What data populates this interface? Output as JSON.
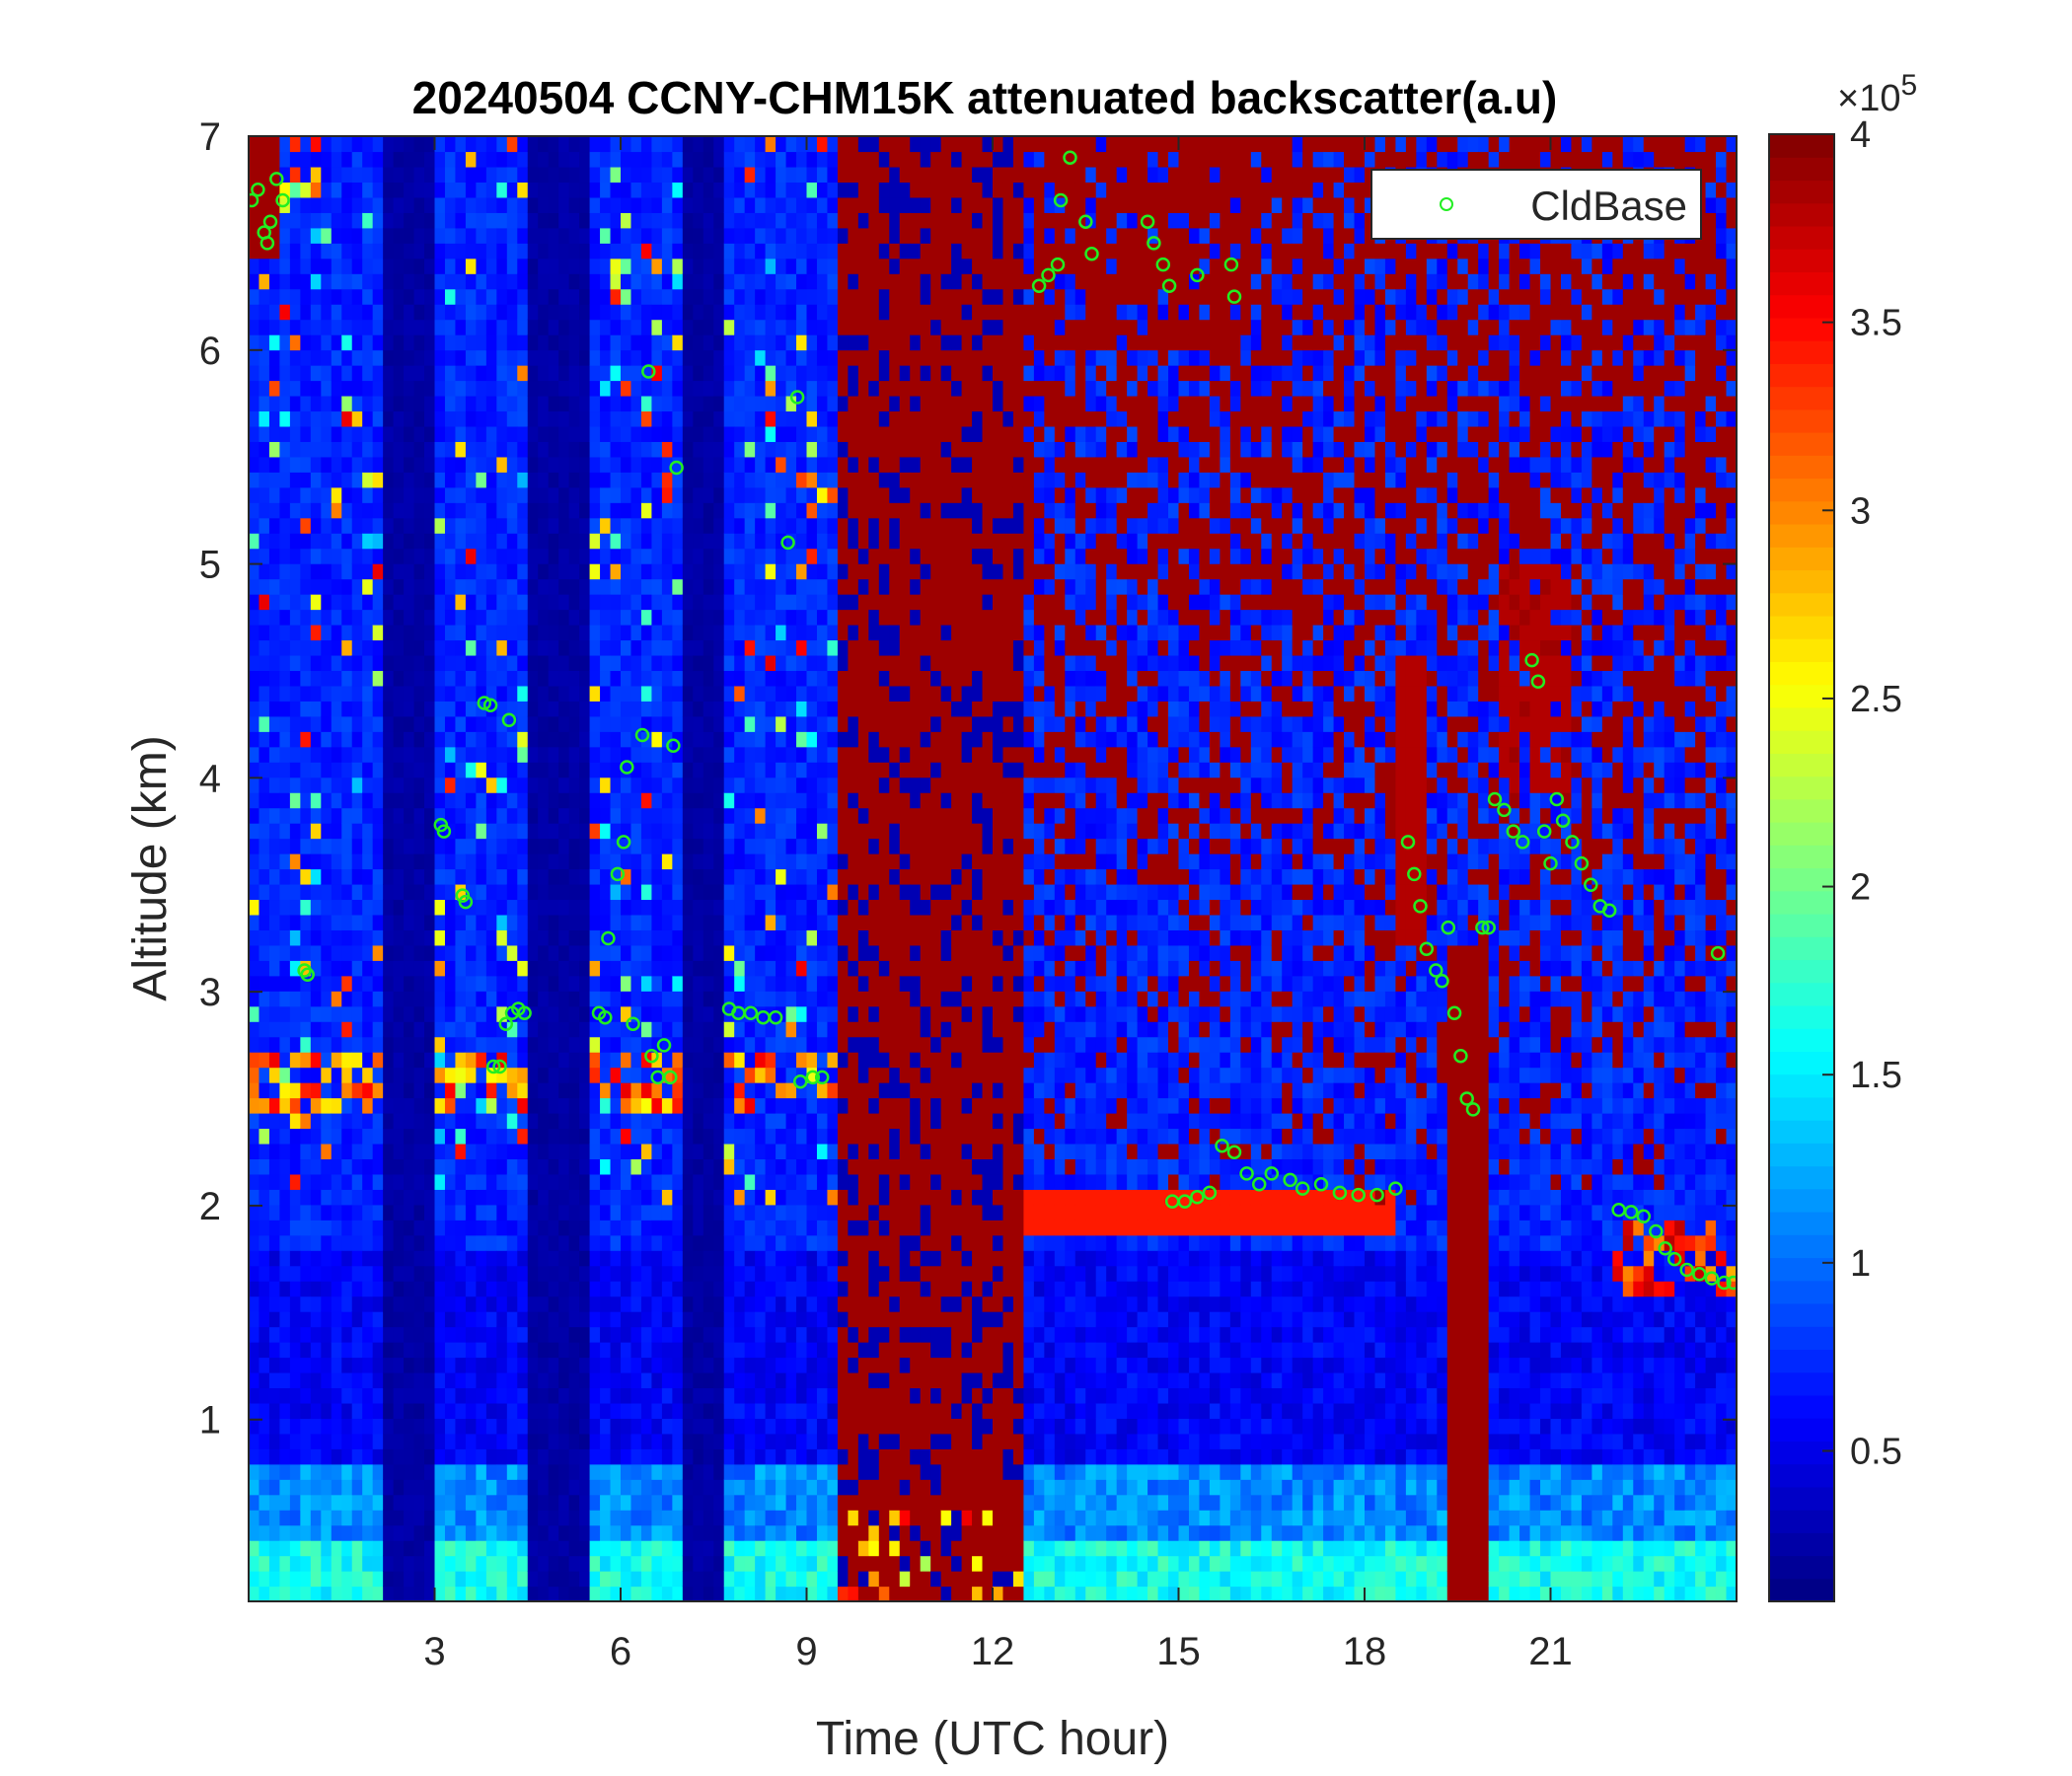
{
  "chart_data": {
    "type": "heatmap",
    "title": "20240504 CCNY-CHM15K attenuated backscatter(a.u)",
    "xlabel": "Time (UTC hour)",
    "ylabel": "Altitude (km)",
    "xlim": [
      0,
      24
    ],
    "ylim": [
      0.15,
      7
    ],
    "xticks": [
      3,
      6,
      9,
      12,
      15,
      18,
      21
    ],
    "yticks": [
      1,
      2,
      3,
      4,
      5,
      6,
      7
    ],
    "colorbar": {
      "colormap": "jet",
      "clim": [
        10000,
        400000
      ],
      "ticks": [
        0.5,
        1,
        1.5,
        2,
        2.5,
        3,
        3.5,
        4
      ],
      "multiplier_label": "×10",
      "multiplier_exponent": "5"
    },
    "legend": {
      "location": "top-right",
      "entries": [
        "CldBase"
      ]
    },
    "series": [
      {
        "name": "CldBase",
        "marker": "circle-open",
        "color": "#22ee22",
        "points": [
          [
            0.05,
            6.7
          ],
          [
            0.15,
            6.75
          ],
          [
            0.25,
            6.55
          ],
          [
            0.3,
            6.5
          ],
          [
            0.35,
            6.6
          ],
          [
            0.45,
            6.8
          ],
          [
            0.55,
            6.7
          ],
          [
            0.9,
            3.1
          ],
          [
            0.95,
            3.08
          ],
          [
            3.1,
            3.78
          ],
          [
            3.15,
            3.75
          ],
          [
            3.45,
            3.45
          ],
          [
            3.5,
            3.42
          ],
          [
            3.8,
            4.35
          ],
          [
            3.9,
            4.34
          ],
          [
            4.2,
            4.27
          ],
          [
            3.95,
            2.65
          ],
          [
            4.05,
            2.65
          ],
          [
            4.15,
            2.85
          ],
          [
            4.25,
            2.9
          ],
          [
            4.35,
            2.92
          ],
          [
            4.45,
            2.9
          ],
          [
            5.65,
            2.9
          ],
          [
            5.75,
            2.88
          ],
          [
            5.8,
            3.25
          ],
          [
            5.95,
            3.55
          ],
          [
            6.05,
            3.7
          ],
          [
            6.1,
            4.05
          ],
          [
            6.2,
            2.85
          ],
          [
            6.35,
            4.2
          ],
          [
            6.45,
            5.9
          ],
          [
            6.5,
            2.7
          ],
          [
            6.6,
            2.6
          ],
          [
            6.7,
            2.75
          ],
          [
            6.8,
            2.6
          ],
          [
            6.85,
            4.15
          ],
          [
            6.9,
            5.45
          ],
          [
            7.75,
            2.92
          ],
          [
            7.9,
            2.9
          ],
          [
            8.1,
            2.9
          ],
          [
            8.3,
            2.88
          ],
          [
            8.5,
            2.88
          ],
          [
            8.7,
            5.1
          ],
          [
            8.85,
            5.78
          ],
          [
            8.9,
            2.58
          ],
          [
            9.1,
            2.6
          ],
          [
            9.25,
            2.6
          ],
          [
            12.75,
            6.3
          ],
          [
            12.9,
            6.35
          ],
          [
            13.05,
            6.4
          ],
          [
            13.1,
            6.7
          ],
          [
            13.25,
            6.9
          ],
          [
            13.5,
            6.6
          ],
          [
            13.6,
            6.45
          ],
          [
            14.5,
            6.6
          ],
          [
            14.6,
            6.5
          ],
          [
            14.75,
            6.4
          ],
          [
            14.85,
            6.3
          ],
          [
            15.3,
            6.35
          ],
          [
            15.85,
            6.4
          ],
          [
            15.9,
            6.25
          ],
          [
            14.9,
            2.02
          ],
          [
            15.1,
            2.02
          ],
          [
            15.3,
            2.04
          ],
          [
            15.5,
            2.06
          ],
          [
            15.7,
            2.28
          ],
          [
            15.9,
            2.25
          ],
          [
            16.1,
            2.15
          ],
          [
            16.3,
            2.1
          ],
          [
            16.5,
            2.15
          ],
          [
            16.8,
            2.12
          ],
          [
            17.0,
            2.08
          ],
          [
            17.3,
            2.1
          ],
          [
            17.6,
            2.06
          ],
          [
            17.9,
            2.05
          ],
          [
            18.2,
            2.05
          ],
          [
            18.5,
            2.08
          ],
          [
            18.7,
            3.7
          ],
          [
            18.8,
            3.55
          ],
          [
            18.9,
            3.4
          ],
          [
            19.0,
            3.2
          ],
          [
            19.15,
            3.1
          ],
          [
            19.25,
            3.05
          ],
          [
            19.35,
            3.3
          ],
          [
            19.45,
            2.9
          ],
          [
            19.55,
            2.7
          ],
          [
            19.65,
            2.5
          ],
          [
            19.75,
            2.45
          ],
          [
            19.9,
            3.3
          ],
          [
            20.0,
            3.3
          ],
          [
            20.1,
            3.9
          ],
          [
            20.25,
            3.85
          ],
          [
            20.4,
            3.75
          ],
          [
            20.55,
            3.7
          ],
          [
            20.7,
            4.55
          ],
          [
            20.8,
            4.45
          ],
          [
            20.9,
            3.75
          ],
          [
            21.0,
            3.6
          ],
          [
            21.1,
            3.9
          ],
          [
            21.2,
            3.8
          ],
          [
            21.35,
            3.7
          ],
          [
            21.5,
            3.6
          ],
          [
            21.65,
            3.5
          ],
          [
            21.8,
            3.4
          ],
          [
            21.95,
            3.38
          ],
          [
            22.1,
            1.98
          ],
          [
            22.3,
            1.97
          ],
          [
            22.5,
            1.95
          ],
          [
            22.7,
            1.88
          ],
          [
            22.85,
            1.8
          ],
          [
            23.0,
            1.75
          ],
          [
            23.2,
            1.7
          ],
          [
            23.4,
            1.68
          ],
          [
            23.6,
            1.66
          ],
          [
            23.8,
            1.64
          ],
          [
            23.95,
            1.64
          ],
          [
            23.7,
            3.18
          ]
        ]
      }
    ]
  }
}
